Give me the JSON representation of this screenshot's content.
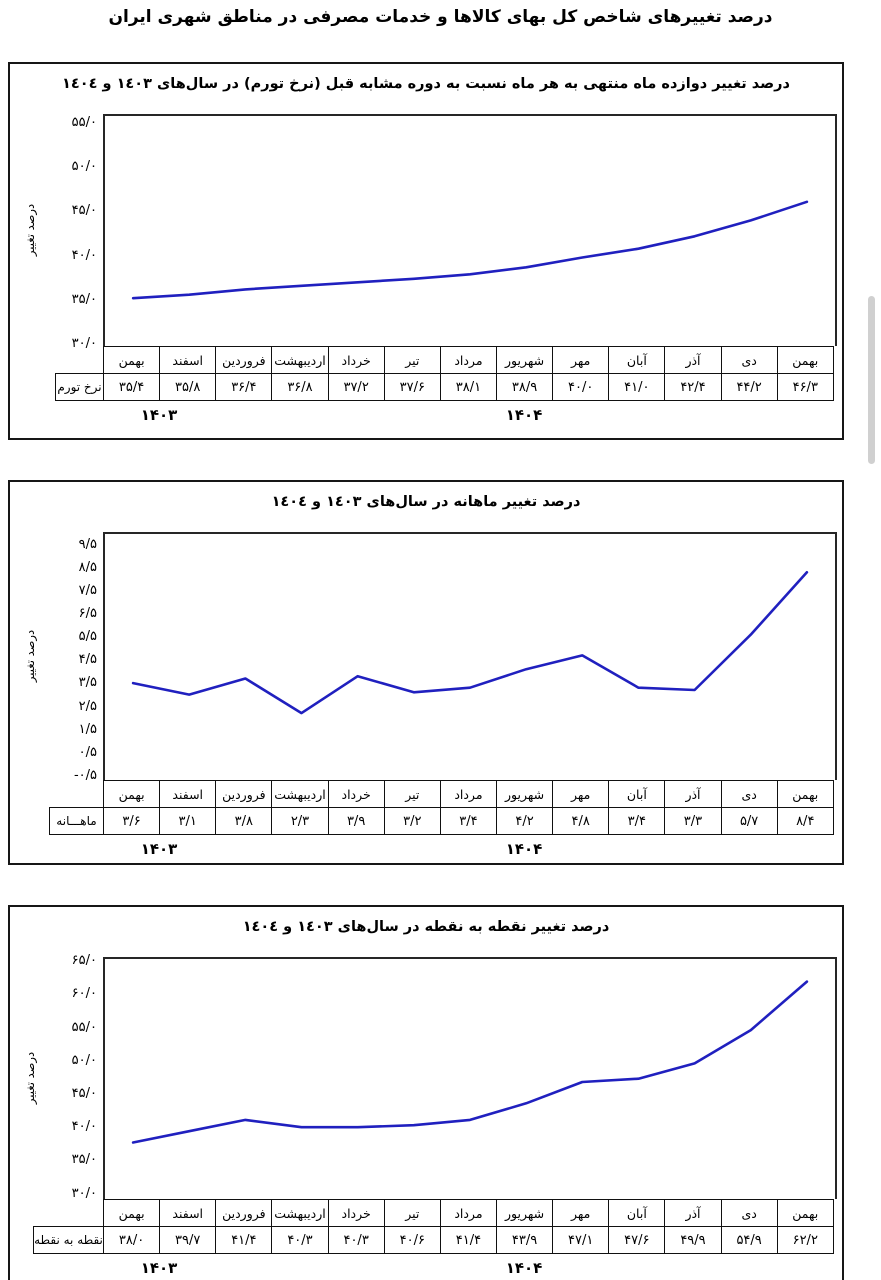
{
  "page_title": "درصد تغییرهای شاخص کل بهای کالاها و خدمات مصرفی در مناطق شهری ایران",
  "colors": {
    "line": "#2020bf",
    "box_border": "#161616",
    "table_border": "#111111",
    "scrollbar_thumb": "#d0d0d0"
  },
  "chart_data": [
    {
      "type": "line",
      "title": "درصد تغییر دوازده ماه منتهی به هر ماه نسبت به دوره مشابه قبل (نرخ تورم) در سال‌های ۱٤۰۳ و ۱٤۰٤",
      "ylabel": "درصد تغییر",
      "row_label": "نرخ تورم",
      "categories": [
        "بهمن",
        "اسفند",
        "فروردین",
        "اردیبهشت",
        "خرداد",
        "تیر",
        "مرداد",
        "شهریور",
        "مهر",
        "آبان",
        "آذر",
        "دی",
        "بهمن"
      ],
      "values": [
        35.4,
        35.8,
        36.4,
        36.8,
        37.2,
        37.6,
        38.1,
        38.9,
        40.0,
        41.0,
        42.4,
        44.2,
        46.3
      ],
      "values_fa": [
        "۳۵/۴",
        "۳۵/۸",
        "۳۶/۴",
        "۳۶/۸",
        "۳۷/۲",
        "۳۷/۶",
        "۳۸/۱",
        "۳۸/۹",
        "۴۰/۰",
        "۴۱/۰",
        "۴۲/۴",
        "۴۴/۲",
        "۴۶/۳"
      ],
      "ytick_values": [
        55,
        50,
        45,
        40,
        35,
        30
      ],
      "ytick_labels": [
        "۵۵/۰",
        "۵۰/۰",
        "۴۵/۰",
        "۴۰/۰",
        "۳۵/۰",
        "۳۰/۰"
      ],
      "ylim": [
        30,
        56
      ],
      "grid": false,
      "legend": false,
      "years": [
        {
          "label": "۱۴۰۳",
          "cols": 2
        },
        {
          "label": "۱۴۰۴",
          "cols": 11
        }
      ]
    },
    {
      "type": "line",
      "title": "درصد تغییر ماهانه در سال‌های ۱٤۰۳ و ۱٤۰٤",
      "ylabel": "درصد تغییر",
      "row_label": "ماهـــانه",
      "categories": [
        "بهمن",
        "اسفند",
        "فروردین",
        "اردیبهشت",
        "خرداد",
        "تیر",
        "مرداد",
        "شهریور",
        "مهر",
        "آبان",
        "آذر",
        "دی",
        "بهمن"
      ],
      "values": [
        3.6,
        3.1,
        3.8,
        2.3,
        3.9,
        3.2,
        3.4,
        4.2,
        4.8,
        3.4,
        3.3,
        5.7,
        8.4
      ],
      "values_fa": [
        "۳/۶",
        "۳/۱",
        "۳/۸",
        "۲/۳",
        "۳/۹",
        "۳/۲",
        "۳/۴",
        "۴/۲",
        "۴/۸",
        "۳/۴",
        "۳/۳",
        "۵/۷",
        "۸/۴"
      ],
      "ytick_values": [
        9.5,
        8.5,
        7.5,
        6.5,
        5.5,
        4.5,
        3.5,
        2.5,
        1.5,
        0.5,
        -0.5
      ],
      "ytick_labels": [
        "۹/۵",
        "۸/۵",
        "۷/۵",
        "۶/۵",
        "۵/۵",
        "۴/۵",
        "۳/۵",
        "۲/۵",
        "۱/۵",
        "۰/۵",
        "-۰/۵"
      ],
      "ylim": [
        -0.6,
        10.06
      ],
      "grid": false,
      "legend": false,
      "years": [
        {
          "label": "۱۴۰۳",
          "cols": 2
        },
        {
          "label": "۱۴۰۴",
          "cols": 11
        }
      ]
    },
    {
      "type": "line",
      "title": "درصد تغییر نقطه به نقطه در سال‌های ۱٤۰۳ و ۱٤۰٤",
      "ylabel": "درصد تغییر",
      "row_label": "نقطه به نقطه",
      "categories": [
        "بهمن",
        "اسفند",
        "فروردین",
        "اردیبهشت",
        "خرداد",
        "تیر",
        "مرداد",
        "شهریور",
        "مهر",
        "آبان",
        "آذر",
        "دی",
        "بهمن"
      ],
      "values": [
        38.0,
        39.7,
        41.4,
        40.3,
        40.3,
        40.6,
        41.4,
        43.9,
        47.1,
        47.6,
        49.9,
        54.9,
        62.2
      ],
      "values_fa": [
        "۳۸/۰",
        "۳۹/۷",
        "۴۱/۴",
        "۴۰/۳",
        "۴۰/۳",
        "۴۰/۶",
        "۴۱/۴",
        "۴۳/۹",
        "۴۷/۱",
        "۴۷/۶",
        "۴۹/۹",
        "۵۴/۹",
        "۶۲/۲"
      ],
      "ytick_values": [
        65,
        60,
        55,
        50,
        45,
        40,
        35,
        30
      ],
      "ytick_labels": [
        "۶۵/۰",
        "۶۰/۰",
        "۵۵/۰",
        "۵۰/۰",
        "۴۵/۰",
        "۴۰/۰",
        "۳۵/۰",
        "۳۰/۰"
      ],
      "ylim": [
        29.5,
        65.6
      ],
      "grid": false,
      "legend": false,
      "years": [
        {
          "label": "۱۴۰۳",
          "cols": 2
        },
        {
          "label": "۱۴۰۴",
          "cols": 11
        }
      ]
    }
  ]
}
